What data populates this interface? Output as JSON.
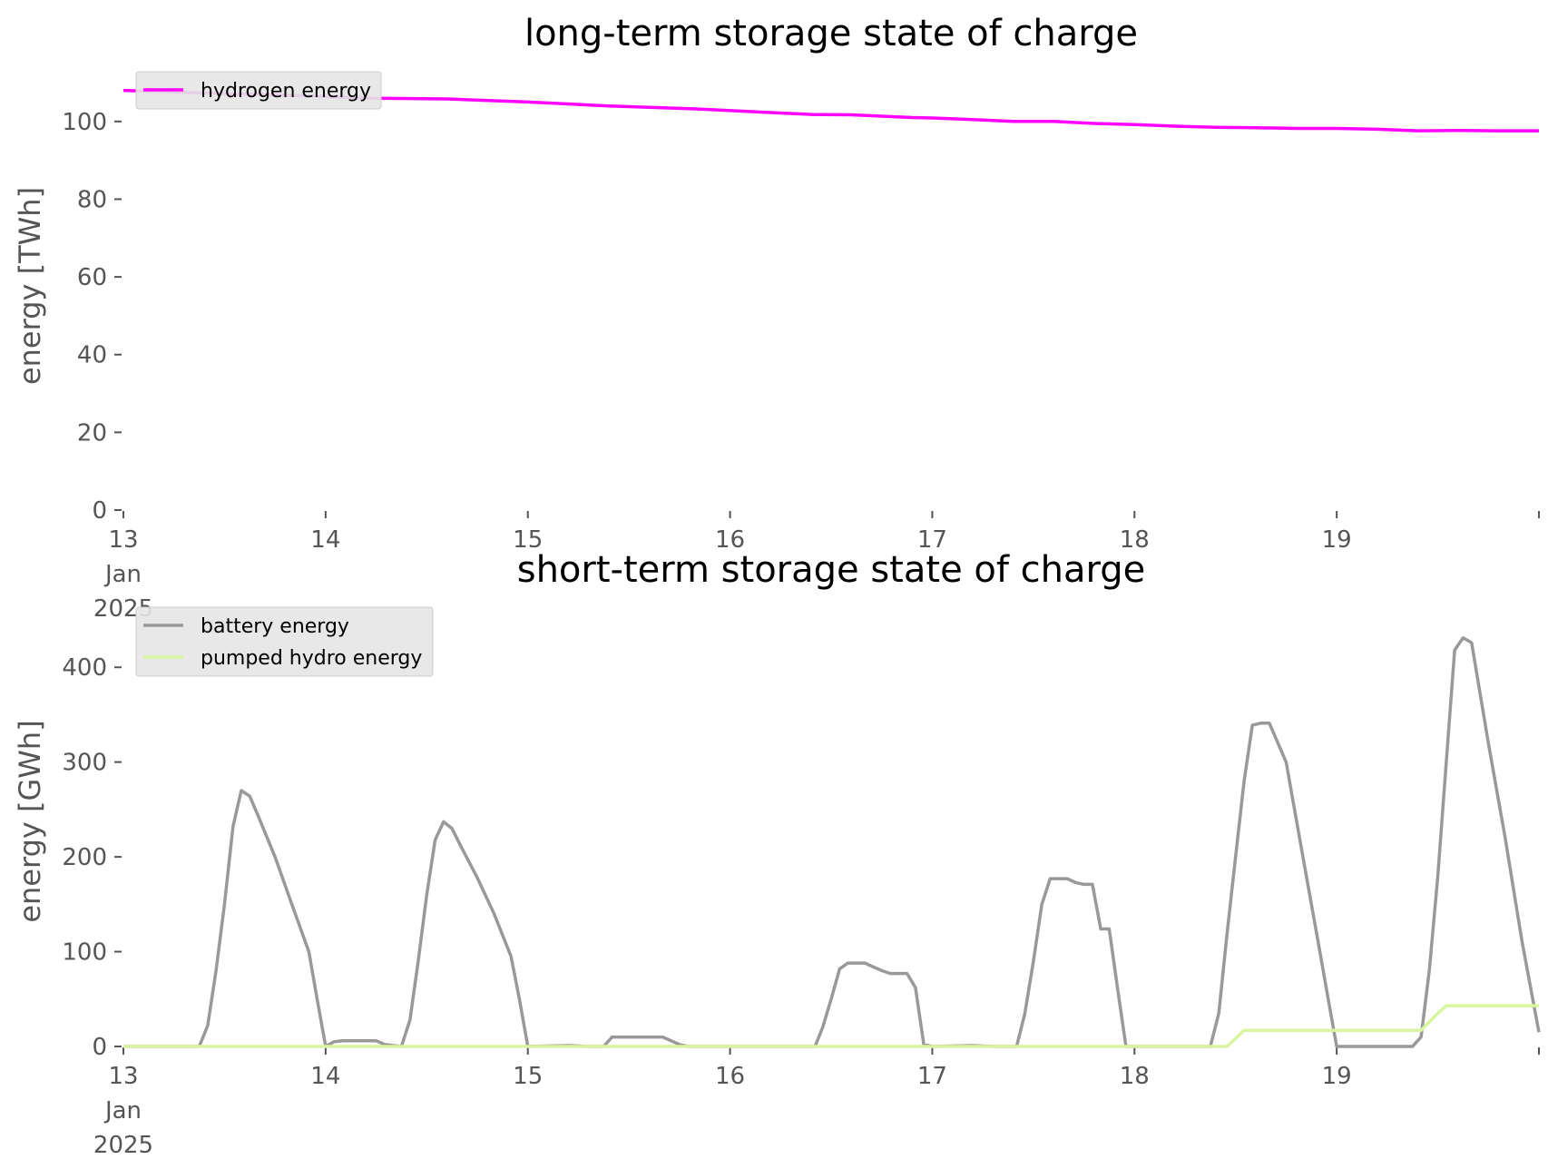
{
  "chart_data": [
    {
      "type": "line",
      "title": "long-term storage state of charge",
      "xlabel": "",
      "ylabel": "energy [TWh]",
      "ylim": [
        0,
        110
      ],
      "yticks": [
        0,
        20,
        40,
        60,
        80,
        100
      ],
      "xlim": [
        13,
        20
      ],
      "xticks": [
        {
          "value": 13,
          "label": [
            "13",
            "Jan",
            "2025"
          ]
        },
        {
          "value": 14,
          "label": [
            "14"
          ]
        },
        {
          "value": 15,
          "label": [
            "15"
          ]
        },
        {
          "value": 16,
          "label": [
            "16"
          ]
        },
        {
          "value": 17,
          "label": [
            "17"
          ]
        },
        {
          "value": 18,
          "label": [
            "18"
          ]
        },
        {
          "value": 19,
          "label": [
            "19"
          ]
        },
        {
          "value": 20,
          "label": [
            ""
          ]
        }
      ],
      "grid": false,
      "legend_position": "upper-left",
      "series": [
        {
          "name": "hydrogen energy",
          "color": "#ff00ff",
          "x": [
            13.0,
            13.3,
            13.6,
            13.9,
            14.2,
            14.6,
            15.0,
            15.4,
            15.8,
            16.2,
            16.4,
            16.6,
            16.9,
            17.0,
            17.2,
            17.4,
            17.6,
            17.8,
            18.0,
            18.2,
            18.4,
            18.6,
            18.8,
            19.0,
            19.2,
            19.4,
            19.6,
            19.8,
            20.0
          ],
          "y": [
            108.0,
            107.5,
            107.0,
            106.6,
            106.0,
            105.8,
            105.0,
            104.0,
            103.3,
            102.3,
            101.8,
            101.7,
            101.0,
            100.9,
            100.5,
            100.0,
            100.0,
            99.5,
            99.2,
            98.8,
            98.5,
            98.4,
            98.2,
            98.2,
            98.0,
            97.6,
            97.7,
            97.6,
            97.6
          ]
        }
      ]
    },
    {
      "type": "line",
      "title": "short-term storage state of charge",
      "xlabel": "",
      "ylabel": "energy [GWh]",
      "ylim": [
        0,
        450
      ],
      "yticks": [
        0,
        100,
        200,
        300,
        400
      ],
      "xlim": [
        13,
        20
      ],
      "xticks": [
        {
          "value": 13,
          "label": [
            "13",
            "Jan",
            "2025"
          ]
        },
        {
          "value": 14,
          "label": [
            "14"
          ]
        },
        {
          "value": 15,
          "label": [
            "15"
          ]
        },
        {
          "value": 16,
          "label": [
            "16"
          ]
        },
        {
          "value": 17,
          "label": [
            "17"
          ]
        },
        {
          "value": 18,
          "label": [
            "18"
          ]
        },
        {
          "value": 19,
          "label": [
            "19"
          ]
        },
        {
          "value": 20,
          "label": [
            ""
          ]
        }
      ],
      "grid": false,
      "legend_position": "upper-left",
      "series": [
        {
          "name": "battery energy",
          "color": "#999999",
          "x": [
            13.0,
            13.375,
            13.417,
            13.458,
            13.5,
            13.542,
            13.583,
            13.625,
            13.667,
            13.75,
            13.833,
            13.917,
            13.958,
            14.0,
            14.042,
            14.083,
            14.25,
            14.292,
            14.375,
            14.417,
            14.458,
            14.5,
            14.542,
            14.583,
            14.625,
            14.667,
            14.75,
            14.833,
            14.917,
            14.958,
            15.0,
            15.2,
            15.3,
            15.375,
            15.417,
            15.667,
            15.75,
            15.792,
            16.42,
            16.458,
            16.5,
            16.542,
            16.583,
            16.625,
            16.667,
            16.708,
            16.75,
            16.792,
            16.833,
            16.875,
            16.917,
            16.958,
            17.0,
            17.2,
            17.3,
            17.417,
            17.458,
            17.5,
            17.542,
            17.583,
            17.625,
            17.667,
            17.708,
            17.75,
            17.792,
            17.833,
            17.875,
            17.917,
            17.958,
            18.0,
            18.375,
            18.417,
            18.458,
            18.5,
            18.542,
            18.583,
            18.625,
            18.667,
            18.75,
            18.833,
            18.917,
            18.958,
            19.0,
            19.333,
            19.375,
            19.417,
            19.458,
            19.5,
            19.542,
            19.583,
            19.625,
            19.667,
            19.75,
            19.833,
            19.917,
            20.0
          ],
          "y": [
            0,
            0,
            22,
            80,
            150,
            232,
            270,
            264,
            243,
            200,
            150,
            100,
            50,
            0,
            5,
            6,
            6,
            2,
            0,
            28,
            90,
            160,
            218,
            237,
            230,
            212,
            178,
            140,
            95,
            50,
            0,
            1,
            0,
            0,
            10,
            10,
            2,
            0,
            0,
            20,
            50,
            82,
            88,
            88,
            88,
            84,
            80,
            77,
            77,
            77,
            62,
            2,
            0,
            1,
            0,
            0,
            35,
            90,
            150,
            177,
            177,
            177,
            173,
            171,
            171,
            124,
            124,
            60,
            0,
            0,
            0,
            35,
            120,
            200,
            280,
            339,
            341,
            341,
            300,
            200,
            100,
            50,
            0,
            0,
            0,
            10,
            80,
            180,
            300,
            418,
            431,
            426,
            320,
            220,
            110,
            15
          ]
        },
        {
          "name": "pumped hydro energy",
          "color": "#d9f5a0",
          "x": [
            13.0,
            18.458,
            18.542,
            19.417,
            19.5,
            19.542,
            20.0
          ],
          "y": [
            0,
            0,
            17,
            17,
            35,
            43,
            43
          ]
        }
      ]
    }
  ]
}
